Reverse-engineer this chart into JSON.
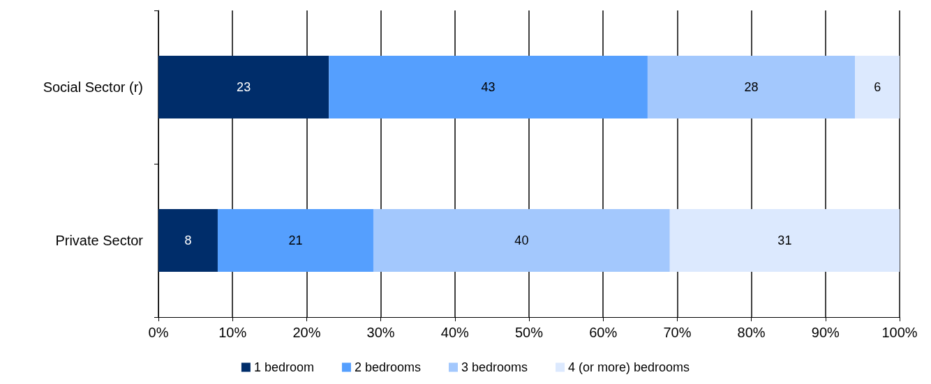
{
  "chart_data": {
    "type": "bar",
    "orientation": "horizontal",
    "stacked": true,
    "categories": [
      "Social Sector (r)",
      "Private Sector"
    ],
    "series": [
      {
        "name": "1 bedroom",
        "color": "#002d6a",
        "values": [
          23,
          8
        ]
      },
      {
        "name": "2 bedrooms",
        "color": "#559ffe",
        "values": [
          43,
          21
        ]
      },
      {
        "name": "3 bedrooms",
        "color": "#a3c8fd",
        "values": [
          28,
          40
        ]
      },
      {
        "name": "4 (or more) bedrooms",
        "color": "#dce9fe",
        "values": [
          6,
          31
        ]
      }
    ],
    "xlim": [
      0,
      100
    ],
    "xticks": [
      {
        "value": 0,
        "label": "0%"
      },
      {
        "value": 10,
        "label": "10%"
      },
      {
        "value": 20,
        "label": "20%"
      },
      {
        "value": 30,
        "label": "30%"
      },
      {
        "value": 40,
        "label": "40%"
      },
      {
        "value": 50,
        "label": "50%"
      },
      {
        "value": 60,
        "label": "60%"
      },
      {
        "value": 70,
        "label": "70%"
      },
      {
        "value": 80,
        "label": "80%"
      },
      {
        "value": 90,
        "label": "90%"
      },
      {
        "value": 100,
        "label": "100%"
      }
    ],
    "grid": "x",
    "legend": "bottom",
    "data_labels": true
  }
}
